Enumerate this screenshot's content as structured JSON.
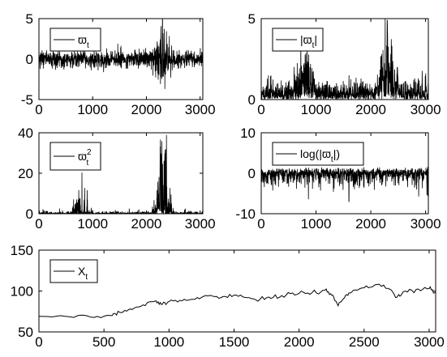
{
  "chart_data": [
    {
      "type": "line",
      "x_range": [
        0,
        3050
      ],
      "ylim": [
        -5,
        5
      ],
      "xticks": [
        0,
        1000,
        2000,
        3000
      ],
      "yticks": [
        -5,
        0,
        5
      ],
      "legend": {
        "label": "ϖ",
        "sub": "t",
        "placement": "top-left"
      },
      "series": [
        {
          "kind": "noise",
          "base": 0,
          "amp": 0.9,
          "calm": 0.6,
          "spike_at": 2300,
          "spike_val": 4.9,
          "vol_bumps": [
            [
              2300,
              2.2
            ]
          ]
        }
      ]
    },
    {
      "type": "line",
      "x_range": [
        0,
        3050
      ],
      "ylim": [
        0,
        5
      ],
      "xticks": [
        0,
        1000,
        2000,
        3000
      ],
      "yticks": [
        0,
        5
      ],
      "legend": {
        "label": "|ϖ",
        "sub": "t",
        "after": "|",
        "placement": "top-left"
      },
      "series": [
        {
          "kind": "abs_noise",
          "base": 0,
          "amp": 1.2,
          "calm": 0.5,
          "spike_at": 2300,
          "spike_val": 4.9,
          "vol_bumps": [
            [
              800,
              1.6
            ],
            [
              2300,
              2.4
            ]
          ]
        }
      ]
    },
    {
      "type": "line",
      "x_range": [
        0,
        3050
      ],
      "ylim": [
        0,
        40
      ],
      "xticks": [
        0,
        1000,
        2000,
        3000
      ],
      "yticks": [
        0,
        20,
        40
      ],
      "legend": {
        "label": "ϖ",
        "sub": "t",
        "sup": "2",
        "placement": "top-left"
      },
      "series": [
        {
          "kind": "sq_noise",
          "base": 0,
          "amp": 1.0,
          "calm": 0.5,
          "spike_at": 2300,
          "spike_val": 24.5,
          "vol_bumps": [
            [
              800,
              1.8
            ],
            [
              2300,
              3.5
            ]
          ]
        }
      ]
    },
    {
      "type": "line",
      "x_range": [
        0,
        3050
      ],
      "ylim": [
        -10,
        10
      ],
      "xticks": [
        0,
        1000,
        2000,
        3000
      ],
      "yticks": [
        -10,
        0,
        10
      ],
      "legend": {
        "label": "log(|ϖ",
        "sub": "t",
        "after": "|)",
        "placement": "top-left"
      },
      "series": [
        {
          "kind": "log_noise",
          "base": -0.5,
          "amp": 1.4,
          "calm": 1.0,
          "spike_at": 1600,
          "spike_val": -7,
          "vol_bumps": []
        }
      ]
    },
    {
      "type": "line",
      "x_range": [
        0,
        3050
      ],
      "ylim": [
        50,
        150
      ],
      "xticks": [
        0,
        500,
        1000,
        1500,
        2000,
        2500,
        3000
      ],
      "yticks": [
        50,
        100,
        150
      ],
      "legend": {
        "label": "X",
        "sub": "t",
        "placement": "top-left"
      },
      "series": [
        {
          "kind": "path",
          "x": [
            0,
            200,
            400,
            550,
            620,
            700,
            800,
            900,
            950,
            1000,
            1100,
            1200,
            1300,
            1400,
            1500,
            1600,
            1700,
            1800,
            1900,
            2000,
            2100,
            2200,
            2250,
            2300,
            2350,
            2400,
            2500,
            2600,
            2700,
            2750,
            2800,
            2900,
            3000,
            3050
          ],
          "values": [
            69,
            69,
            68,
            70,
            74,
            78,
            83,
            88,
            84,
            87,
            88,
            90,
            94,
            92,
            95,
            92,
            90,
            92,
            95,
            97,
            98,
            101,
            95,
            82,
            92,
            98,
            104,
            108,
            102,
            92,
            99,
            102,
            103,
            99
          ]
        }
      ]
    }
  ]
}
